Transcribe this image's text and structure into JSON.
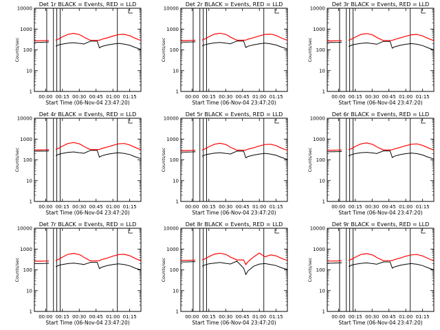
{
  "figure": {
    "x_tick_labels": [
      "00:00",
      "00:15",
      "00:30",
      "00:45",
      "01:00",
      "01:15"
    ],
    "x_tick_values": [
      0,
      15,
      30,
      45,
      60,
      75
    ],
    "y_tick_labels": [
      "1",
      "10",
      "100",
      "1000",
      "10000"
    ],
    "y_tick_values": [
      1,
      10,
      100,
      1000,
      10000
    ],
    "xlim": [
      -10,
      85
    ],
    "ylim": [
      1,
      10000
    ],
    "y_scale": "log",
    "xlabel": "Start Time (06-Nov-04 23:47:20)",
    "ylabel": "Counts/sec",
    "colors": {
      "events": "#000000",
      "lld": "#ff0000",
      "markers": "#000000"
    }
  },
  "chart_data": [
    {
      "type": "line",
      "title": "Det 1r BLACK = Events, RED = LLD",
      "xlabel": "Start Time (06-Nov-04 23:47:20)",
      "ylabel": "Counts/sec",
      "xlim": [
        -10,
        85
      ],
      "ylim": [
        1,
        10000
      ],
      "y_scale": "log",
      "x_tick_labels": [
        "00:00",
        "00:15",
        "00:30",
        "00:45",
        "01:00",
        "01:15"
      ],
      "x": [
        -10,
        -5,
        0,
        3,
        6,
        9,
        12,
        15,
        20,
        25,
        30,
        32,
        34,
        40,
        46,
        48,
        50,
        55,
        60,
        65,
        70,
        75,
        80,
        85
      ],
      "series": [
        {
          "color": "#000000",
          "values": [
            230,
            230,
            235,
            240,
            null,
            150,
            175,
            190,
            210,
            220,
            205,
            200,
            190,
            260,
            260,
            125,
            145,
            170,
            190,
            205,
            190,
            165,
            130,
            105
          ]
        },
        {
          "color": "#ff0000",
          "values": [
            275,
            275,
            280,
            285,
            null,
            290,
            340,
            420,
            560,
            620,
            540,
            480,
            410,
            285,
            285,
            290,
            320,
            380,
            460,
            540,
            560,
            480,
            360,
            280
          ]
        }
      ],
      "markers": [
        1,
        7,
        10,
        13,
        64
      ],
      "annotation_bracket": 74
    },
    {
      "type": "line",
      "title": "Det 2r BLACK = Events, RED = LLD",
      "xlabel": "Start Time (06-Nov-04 23:47:20)",
      "ylabel": "Counts/sec",
      "xlim": [
        -10,
        85
      ],
      "ylim": [
        1,
        10000
      ],
      "y_scale": "log",
      "x_tick_labels": [
        "00:00",
        "00:15",
        "00:30",
        "00:45",
        "01:00",
        "01:15"
      ],
      "x": [
        -10,
        -5,
        0,
        3,
        6,
        9,
        12,
        15,
        20,
        25,
        30,
        32,
        34,
        40,
        46,
        48,
        50,
        55,
        60,
        65,
        70,
        75,
        80,
        85
      ],
      "series": [
        {
          "color": "#000000",
          "values": [
            235,
            235,
            240,
            245,
            null,
            155,
            180,
            195,
            215,
            225,
            210,
            205,
            195,
            265,
            265,
            130,
            150,
            175,
            195,
            210,
            195,
            170,
            135,
            110
          ]
        },
        {
          "color": "#ff0000",
          "values": [
            280,
            280,
            285,
            290,
            null,
            295,
            345,
            425,
            570,
            630,
            550,
            490,
            415,
            290,
            290,
            295,
            325,
            385,
            470,
            550,
            570,
            490,
            365,
            285
          ]
        }
      ],
      "markers": [
        1,
        7,
        10,
        13,
        64
      ],
      "annotation_bracket": 74
    },
    {
      "type": "line",
      "title": "Det 3r BLACK = Events, RED = LLD",
      "xlabel": "Start Time (06-Nov-04 23:47:20)",
      "ylabel": "Counts/sec",
      "xlim": [
        -10,
        85
      ],
      "ylim": [
        1,
        10000
      ],
      "y_scale": "log",
      "x_tick_labels": [
        "00:00",
        "00:15",
        "00:30",
        "00:45",
        "01:00",
        "01:15"
      ],
      "x": [
        -10,
        -5,
        0,
        3,
        6,
        9,
        12,
        15,
        20,
        25,
        30,
        32,
        34,
        40,
        46,
        48,
        50,
        55,
        60,
        65,
        70,
        75,
        80,
        85
      ],
      "series": [
        {
          "color": "#000000",
          "values": [
            225,
            225,
            230,
            235,
            null,
            145,
            170,
            185,
            205,
            215,
            200,
            195,
            185,
            255,
            255,
            120,
            140,
            165,
            185,
            200,
            185,
            160,
            125,
            100
          ]
        },
        {
          "color": "#ff0000",
          "values": [
            270,
            270,
            275,
            280,
            null,
            285,
            335,
            410,
            550,
            610,
            530,
            470,
            400,
            280,
            280,
            285,
            315,
            375,
            450,
            530,
            550,
            470,
            355,
            275
          ]
        }
      ],
      "markers": [
        1,
        7,
        10,
        13,
        64
      ],
      "annotation_bracket": 74
    },
    {
      "type": "line",
      "title": "Det 4r BLACK = Events, RED = LLD",
      "xlabel": "Start Time (06-Nov-04 23:47:20)",
      "ylabel": "Counts/sec",
      "xlim": [
        -10,
        85
      ],
      "ylim": [
        1,
        10000
      ],
      "y_scale": "log",
      "x_tick_labels": [
        "00:00",
        "00:15",
        "00:30",
        "00:45",
        "01:00",
        "01:15"
      ],
      "x": [
        -10,
        -5,
        0,
        3,
        6,
        9,
        12,
        15,
        20,
        25,
        30,
        32,
        34,
        40,
        46,
        48,
        50,
        55,
        60,
        65,
        70,
        75,
        80,
        85
      ],
      "series": [
        {
          "color": "#000000",
          "values": [
            260,
            260,
            265,
            270,
            null,
            160,
            185,
            205,
            230,
            240,
            220,
            215,
            205,
            285,
            285,
            135,
            155,
            185,
            205,
            220,
            205,
            180,
            140,
            115
          ]
        },
        {
          "color": "#ff0000",
          "values": [
            300,
            300,
            305,
            310,
            null,
            315,
            370,
            460,
            610,
            680,
            590,
            520,
            445,
            310,
            310,
            315,
            350,
            415,
            500,
            590,
            610,
            520,
            390,
            305
          ]
        }
      ],
      "markers": [
        1,
        7,
        10,
        13,
        64
      ],
      "annotation_bracket": 74
    },
    {
      "type": "line",
      "title": "Det 5r BLACK = Events, RED = LLD",
      "xlabel": "Start Time (06-Nov-04 23:47:20)",
      "ylabel": "Counts/sec",
      "xlim": [
        -10,
        85
      ],
      "ylim": [
        1,
        10000
      ],
      "y_scale": "log",
      "x_tick_labels": [
        "00:00",
        "00:15",
        "00:30",
        "00:45",
        "01:00",
        "01:15"
      ],
      "x": [
        -10,
        -5,
        0,
        3,
        6,
        9,
        12,
        15,
        20,
        25,
        30,
        32,
        34,
        40,
        46,
        48,
        50,
        55,
        60,
        65,
        70,
        75,
        80,
        85
      ],
      "series": [
        {
          "color": "#000000",
          "values": [
            235,
            235,
            240,
            245,
            null,
            150,
            175,
            190,
            210,
            220,
            205,
            200,
            190,
            260,
            260,
            125,
            145,
            170,
            190,
            205,
            190,
            165,
            130,
            105
          ]
        },
        {
          "color": "#ff0000",
          "values": [
            280,
            280,
            285,
            290,
            null,
            295,
            345,
            425,
            565,
            625,
            545,
            485,
            410,
            290,
            290,
            295,
            325,
            385,
            465,
            545,
            565,
            485,
            360,
            285
          ]
        }
      ],
      "markers": [
        1,
        7,
        10,
        13,
        64
      ],
      "annotation_bracket": 74
    },
    {
      "type": "line",
      "title": "Det 6r BLACK = Events, RED = LLD",
      "xlabel": "Start Time (06-Nov-04 23:47:20)",
      "ylabel": "Counts/sec",
      "xlim": [
        -10,
        85
      ],
      "ylim": [
        1,
        10000
      ],
      "y_scale": "log",
      "x_tick_labels": [
        "00:00",
        "00:15",
        "00:30",
        "00:45",
        "01:00",
        "01:15"
      ],
      "x": [
        -10,
        -5,
        0,
        3,
        6,
        9,
        12,
        15,
        20,
        25,
        30,
        32,
        34,
        40,
        46,
        48,
        50,
        55,
        60,
        65,
        70,
        75,
        80,
        85
      ],
      "series": [
        {
          "color": "#000000",
          "values": [
            245,
            245,
            250,
            255,
            null,
            155,
            180,
            200,
            220,
            230,
            215,
            210,
            200,
            270,
            270,
            130,
            150,
            178,
            198,
            212,
            198,
            172,
            135,
            110
          ]
        },
        {
          "color": "#ff0000",
          "values": [
            290,
            290,
            295,
            300,
            null,
            305,
            355,
            440,
            585,
            650,
            565,
            500,
            425,
            300,
            300,
            305,
            335,
            400,
            480,
            565,
            585,
            500,
            375,
            295
          ]
        }
      ],
      "markers": [
        1,
        7,
        10,
        13,
        64
      ],
      "annotation_bracket": 74
    },
    {
      "type": "line",
      "title": "Det 7r BLACK = Events, RED = LLD",
      "xlabel": "Start Time (06-Nov-04 23:47:20)",
      "ylabel": "Counts/sec",
      "xlim": [
        -10,
        85
      ],
      "ylim": [
        1,
        10000
      ],
      "y_scale": "log",
      "x_tick_labels": [
        "00:00",
        "00:15",
        "00:30",
        "00:45",
        "01:00",
        "01:15"
      ],
      "x": [
        -10,
        -5,
        0,
        3,
        6,
        9,
        12,
        15,
        20,
        25,
        30,
        32,
        34,
        40,
        46,
        48,
        50,
        55,
        60,
        65,
        70,
        75,
        80,
        85
      ],
      "series": [
        {
          "color": "#000000",
          "values": [
            200,
            200,
            205,
            210,
            null,
            140,
            165,
            180,
            200,
            210,
            195,
            190,
            180,
            230,
            230,
            115,
            135,
            160,
            180,
            195,
            180,
            155,
            120,
            100
          ]
        },
        {
          "color": "#ff0000",
          "values": [
            260,
            260,
            265,
            270,
            null,
            275,
            330,
            410,
            560,
            620,
            540,
            480,
            405,
            270,
            270,
            275,
            310,
            370,
            455,
            540,
            560,
            480,
            355,
            270
          ]
        }
      ],
      "markers": [
        1,
        7,
        10,
        13,
        64
      ],
      "annotation_bracket": 74
    },
    {
      "type": "line",
      "title": "Det 8r BLACK = Events, RED = LLD",
      "xlabel": "Start Time (06-Nov-04 23:47:20)",
      "ylabel": "Counts/sec",
      "xlim": [
        -10,
        85
      ],
      "ylim": [
        1,
        10000
      ],
      "y_scale": "log",
      "x_tick_labels": [
        "00:00",
        "00:15",
        "00:30",
        "00:45",
        "01:00",
        "01:15"
      ],
      "x": [
        -10,
        -5,
        0,
        3,
        6,
        9,
        12,
        15,
        20,
        25,
        30,
        32,
        34,
        40,
        46,
        48,
        50,
        55,
        60,
        65,
        70,
        75,
        80,
        85
      ],
      "series": [
        {
          "color": "#000000",
          "values": [
            240,
            240,
            245,
            250,
            null,
            150,
            175,
            195,
            210,
            225,
            205,
            200,
            190,
            260,
            120,
            60,
            90,
            150,
            190,
            200,
            180,
            160,
            125,
            105
          ]
        },
        {
          "color": "#ff0000",
          "values": [
            285,
            285,
            290,
            295,
            null,
            300,
            345,
            430,
            570,
            630,
            550,
            490,
            415,
            300,
            300,
            180,
            250,
            420,
            640,
            420,
            520,
            470,
            355,
            280
          ]
        }
      ],
      "markers": [
        1,
        7,
        10,
        13,
        64
      ],
      "annotation_bracket": 74
    },
    {
      "type": "line",
      "title": "Det 9r BLACK = Events, RED = LLD",
      "xlabel": "Start Time (06-Nov-04 23:47:20)",
      "ylabel": "Counts/sec",
      "xlim": [
        -10,
        85
      ],
      "ylim": [
        1,
        10000
      ],
      "y_scale": "log",
      "x_tick_labels": [
        "00:00",
        "00:15",
        "00:30",
        "00:45",
        "01:00",
        "01:15"
      ],
      "x": [
        -10,
        -5,
        0,
        3,
        6,
        9,
        12,
        15,
        20,
        25,
        30,
        32,
        34,
        40,
        46,
        48,
        50,
        55,
        60,
        65,
        70,
        75,
        80,
        85
      ],
      "series": [
        {
          "color": "#000000",
          "values": [
            210,
            210,
            215,
            220,
            null,
            145,
            170,
            185,
            205,
            215,
            200,
            195,
            185,
            240,
            240,
            120,
            140,
            165,
            185,
            200,
            185,
            160,
            125,
            100
          ]
        },
        {
          "color": "#ff0000",
          "values": [
            265,
            265,
            270,
            275,
            null,
            280,
            330,
            405,
            545,
            605,
            525,
            465,
            395,
            275,
            275,
            280,
            310,
            370,
            450,
            525,
            545,
            465,
            350,
            270
          ]
        }
      ],
      "markers": [
        1,
        7,
        10,
        13,
        64
      ],
      "annotation_bracket": 74
    }
  ]
}
